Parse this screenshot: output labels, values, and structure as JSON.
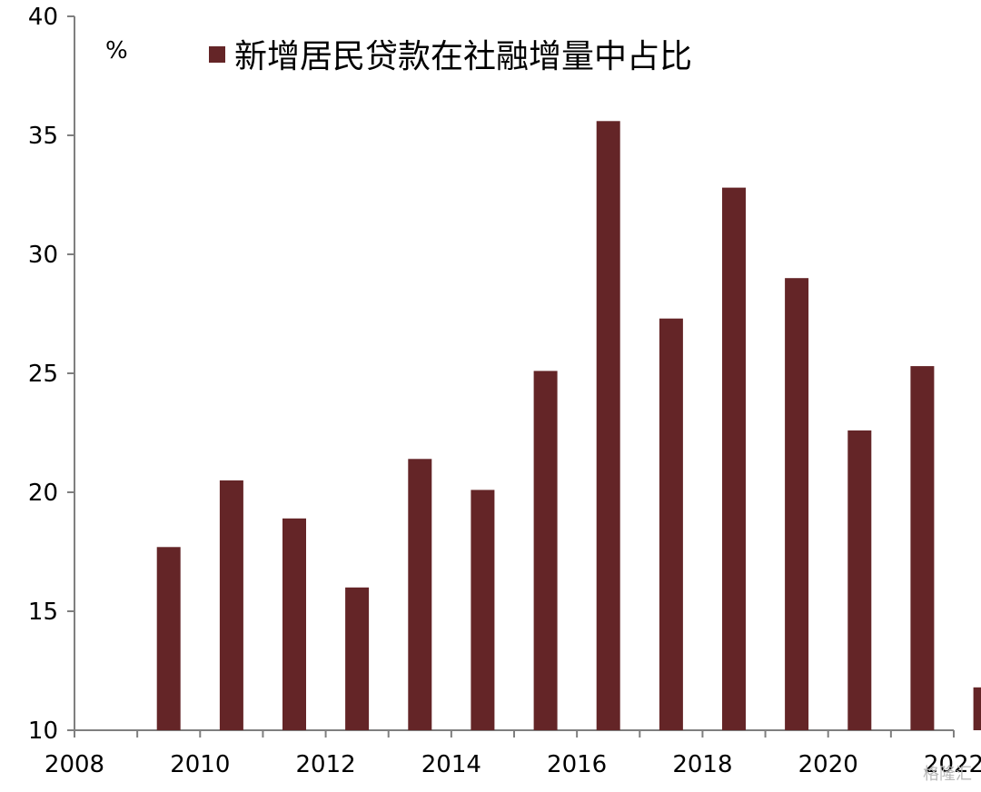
{
  "chart_data": {
    "type": "bar",
    "unit_label": "%",
    "legend": [
      "新增居民贷款在社融增量中占比"
    ],
    "series": [
      {
        "name": "新增居民贷款在社融增量中占比",
        "color": "#642527",
        "x": [
          2009,
          2010,
          2011,
          2012,
          2013,
          2014,
          2015,
          2016,
          2017,
          2018,
          2019,
          2020,
          2021,
          2022
        ],
        "values": [
          17.7,
          20.5,
          18.9,
          16.0,
          21.4,
          20.1,
          25.1,
          35.6,
          27.3,
          32.8,
          29.0,
          22.6,
          25.3,
          11.8
        ]
      }
    ],
    "x_ticks": [
      "2008",
      "2010",
      "2012",
      "2014",
      "2016",
      "2018",
      "2020",
      "2022"
    ],
    "y_ticks": [
      "10",
      "15",
      "20",
      "25",
      "30",
      "35",
      "40"
    ],
    "xlim": [
      2008,
      2022
    ],
    "ylim": [
      10,
      40
    ],
    "grid": false,
    "legend_position": "top"
  },
  "watermark": "格隆汇"
}
